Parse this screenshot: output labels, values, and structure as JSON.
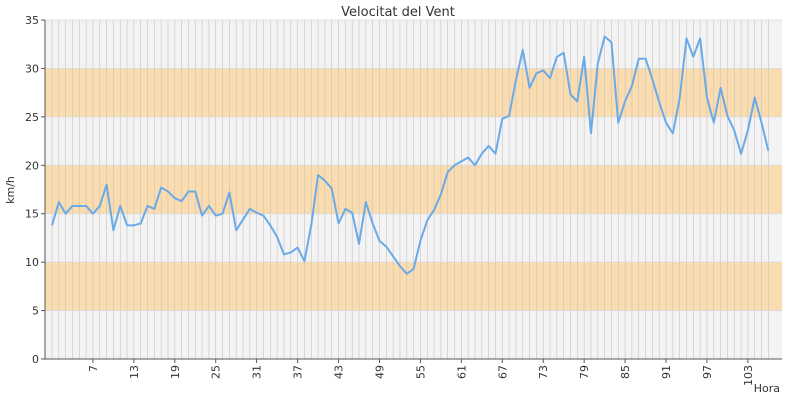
{
  "chart_data": {
    "type": "line",
    "title": "Velocitat del Vent",
    "xlabel": "Hora",
    "ylabel": "km/h",
    "ylim": [
      0,
      35
    ],
    "xlim": [
      1,
      108
    ],
    "y_ticks": [
      0,
      5,
      10,
      15,
      20,
      25,
      30,
      35
    ],
    "x_tick_labels": [
      "7",
      "13",
      "19",
      "25",
      "31",
      "37",
      "43",
      "49",
      "55",
      "61",
      "67",
      "73",
      "79",
      "85",
      "91",
      "97",
      "103"
    ],
    "band_color": "#fbdcae",
    "line_color": "#6aaae8",
    "plot_background": "#f3f3f3",
    "vertical_gridlines": true,
    "series": [
      {
        "values": [
          13.8,
          16.2,
          15.0,
          15.8,
          15.8,
          15.8,
          15.0,
          15.8,
          18.0,
          13.3,
          15.8,
          13.8,
          13.8,
          14.0,
          15.8,
          15.5,
          17.7,
          17.3,
          16.6,
          16.3,
          17.3,
          17.3,
          14.8,
          15.8,
          14.8,
          15.0,
          17.2,
          13.3,
          14.4,
          15.5,
          15.1,
          14.8,
          13.8,
          12.6,
          10.8,
          11.0,
          11.5,
          10.1,
          13.8,
          19.0,
          18.4,
          17.6,
          14.0,
          15.5,
          15.1,
          11.9,
          16.2,
          14.0,
          12.2,
          11.6,
          10.6,
          9.6,
          8.8,
          9.3,
          12.2,
          14.3,
          15.4,
          17.0,
          19.3,
          20.0,
          20.4,
          20.8,
          20.0,
          21.2,
          22.0,
          21.2,
          24.8,
          25.1,
          28.8,
          31.9,
          28.0,
          29.5,
          29.8,
          29.0,
          31.2,
          31.6,
          27.3,
          26.6,
          31.2,
          23.3,
          30.5,
          33.3,
          32.7,
          24.4,
          26.6,
          28.2,
          31.0,
          31.0,
          28.9,
          26.5,
          24.4,
          23.3,
          26.9,
          33.1,
          31.2,
          33.1,
          27.0,
          24.4,
          28.0,
          25.1,
          23.6,
          21.2,
          23.6,
          27.0,
          24.4,
          21.5
        ]
      }
    ]
  }
}
